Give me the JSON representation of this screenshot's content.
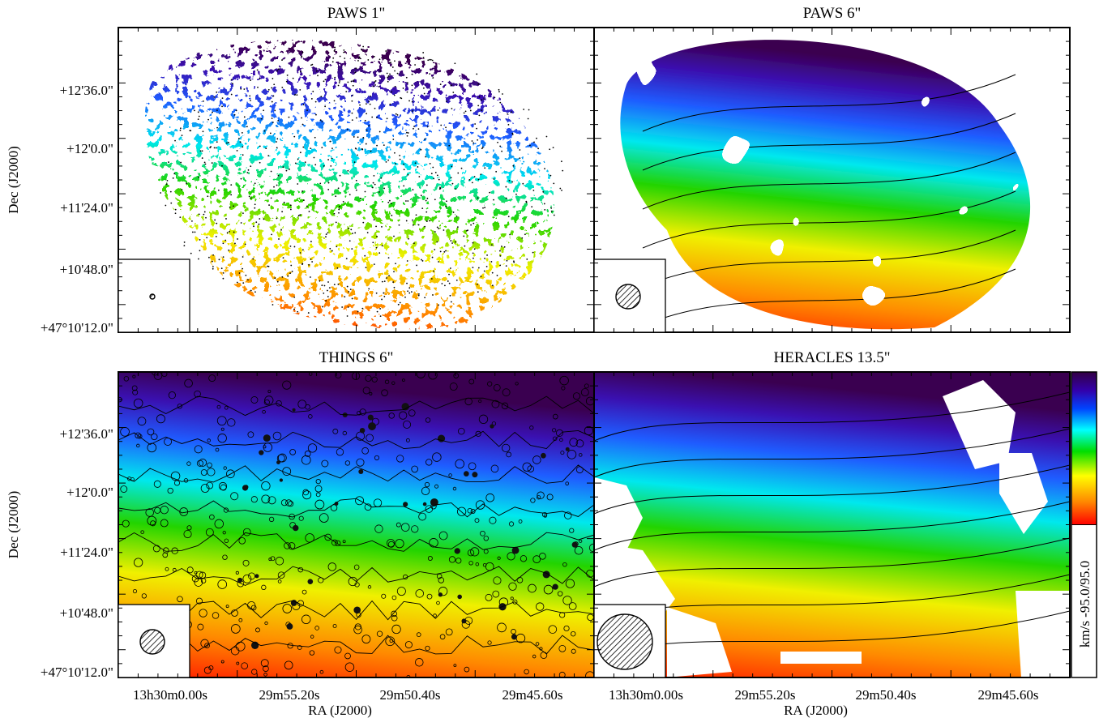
{
  "figure": {
    "panels": [
      {
        "title": "PAWS 1\"",
        "beam": "1\"",
        "style": "sparse"
      },
      {
        "title": "PAWS 6\"",
        "beam": "6\"",
        "style": "patchy"
      },
      {
        "title": "THINGS 6\"",
        "beam": "6\"",
        "style": "noisy"
      },
      {
        "title": "HERACLES 13.5\"",
        "beam": "13.5\"",
        "style": "smooth"
      }
    ],
    "dec_ticks": [
      "+12'36.0\"",
      "+12'0.0\"",
      "+11'24.0\"",
      "+10'48.0\"",
      "+47°10'12.0\""
    ],
    "ra_ticks": [
      "13h30m0.00s",
      "29m55.20s",
      "29m50.40s",
      "29m45.60s"
    ],
    "ylabel": "Dec (J2000)",
    "xlabel": "RA (J2000)",
    "colorbar": {
      "label": "km/s  -95.0/95.0",
      "min": -95.0,
      "max": 95.0,
      "colormap": "rainbow",
      "colors": [
        "#ff0000",
        "#ff8800",
        "#ffff00",
        "#00dd00",
        "#00ffff",
        "#0044ff",
        "#3300aa",
        "#330044"
      ]
    }
  }
}
